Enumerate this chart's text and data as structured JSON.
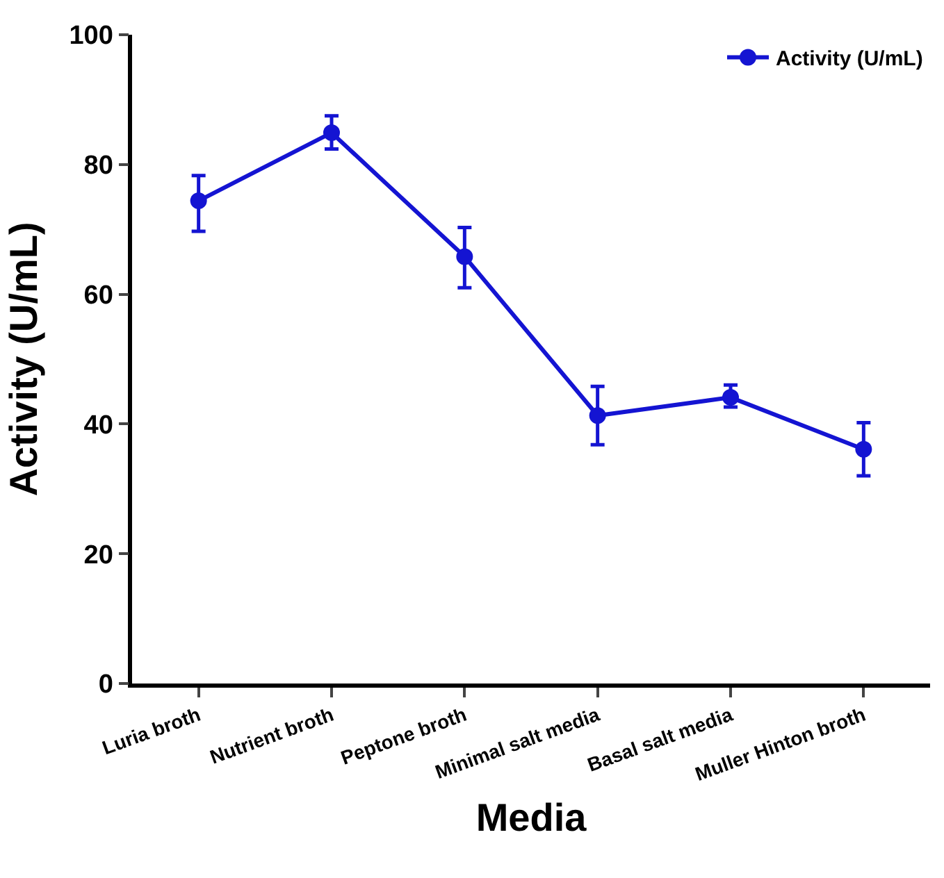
{
  "chart_data": {
    "type": "line",
    "xlabel": "Media",
    "ylabel": "Activity (U/mL)",
    "categories": [
      "Luria broth",
      "Nutrient broth",
      "Peptone broth",
      "Minimal salt media",
      "Basal salt media",
      "Muller Hinton broth"
    ],
    "series": [
      {
        "name": "Activity (U/mL)",
        "color": "#1414d2",
        "values": [
          74.4,
          84.9,
          65.8,
          41.3,
          44.1,
          36.1
        ],
        "errors": [
          [
            69.7,
            78.3
          ],
          [
            82.4,
            87.5
          ],
          [
            61.0,
            70.3
          ],
          [
            36.8,
            45.8
          ],
          [
            42.6,
            46.0
          ],
          [
            32.0,
            40.2
          ]
        ]
      }
    ],
    "ylim": [
      0,
      100
    ],
    "yticks": [
      0,
      20,
      40,
      60,
      80,
      100
    ],
    "legend": "top right",
    "marker": "circle",
    "line_style": "solid"
  }
}
